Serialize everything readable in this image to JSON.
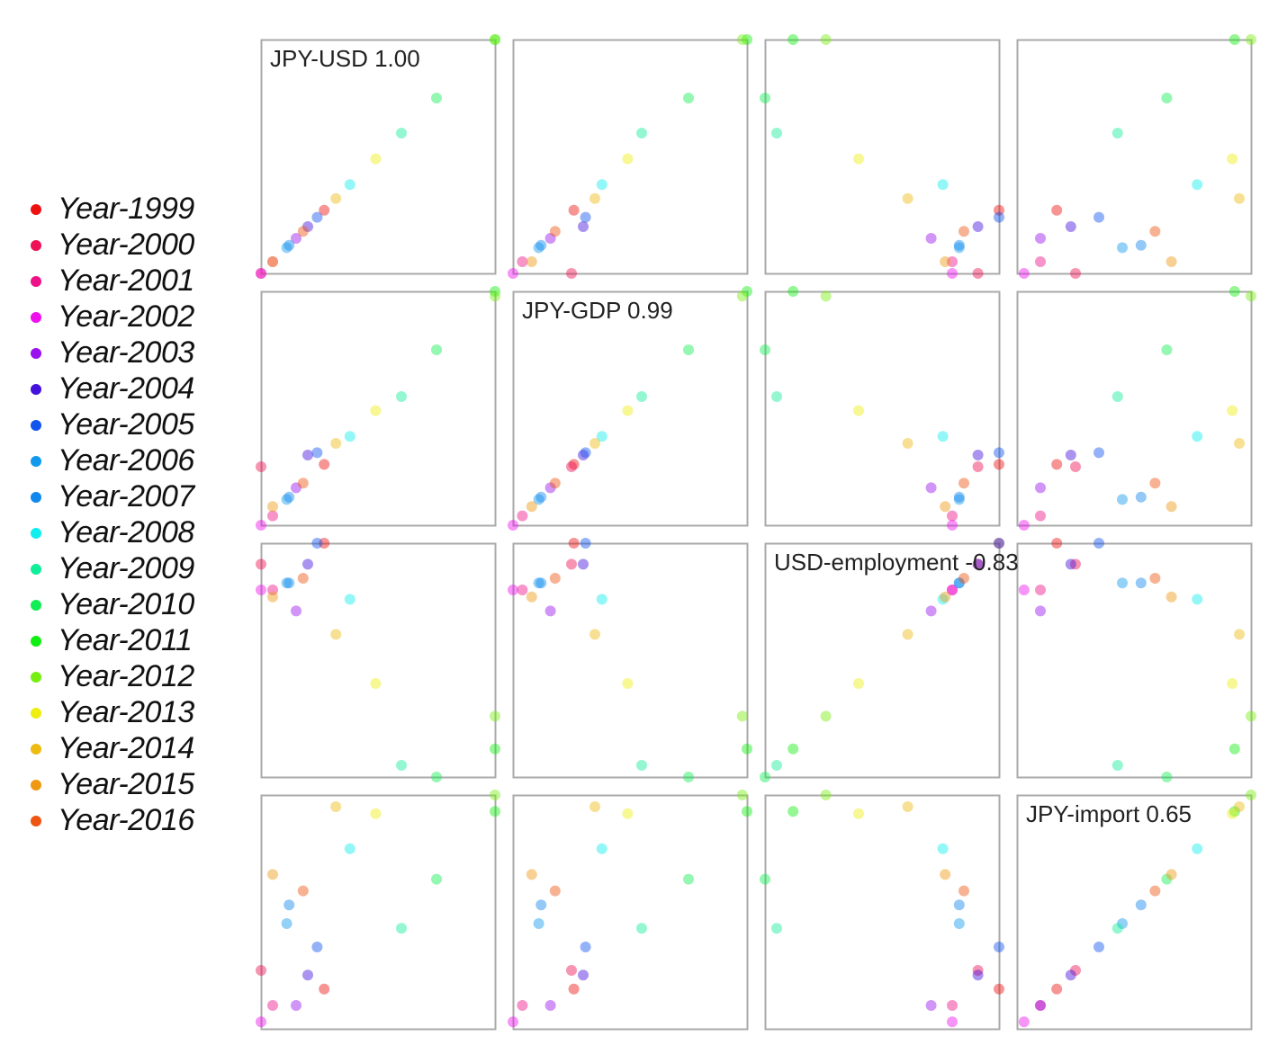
{
  "legend": {
    "items": [
      {
        "label": "Year-1999",
        "color": "#ee1111"
      },
      {
        "label": "Year-2000",
        "color": "#ee1155"
      },
      {
        "label": "Year-2001",
        "color": "#ee1188"
      },
      {
        "label": "Year-2002",
        "color": "#ee11ee"
      },
      {
        "label": "Year-2003",
        "color": "#9911ee"
      },
      {
        "label": "Year-2004",
        "color": "#4411dd"
      },
      {
        "label": "Year-2005",
        "color": "#1155ee"
      },
      {
        "label": "Year-2006",
        "color": "#1199ee"
      },
      {
        "label": "Year-2007",
        "color": "#1188ee"
      },
      {
        "label": "Year-2008",
        "color": "#11eeee"
      },
      {
        "label": "Year-2009",
        "color": "#11ee99"
      },
      {
        "label": "Year-2010",
        "color": "#11ee55"
      },
      {
        "label": "Year-2011",
        "color": "#11ee11"
      },
      {
        "label": "Year-2012",
        "color": "#77ee11"
      },
      {
        "label": "Year-2013",
        "color": "#eeee11"
      },
      {
        "label": "Year-2014",
        "color": "#eebb11"
      },
      {
        "label": "Year-2015",
        "color": "#ee9911"
      },
      {
        "label": "Year-2016",
        "color": "#ee5511"
      }
    ]
  },
  "chart_data": {
    "type": "scatter",
    "variables": [
      "JPY",
      "GDP",
      "employment",
      "import"
    ],
    "row_variables": [
      "JPY",
      "GDP",
      "employment",
      "import"
    ],
    "col_variables": [
      "USD",
      "GDP",
      "employment",
      "import"
    ],
    "point_colors": [
      "#ee1111",
      "#ee1155",
      "#ee1188",
      "#ee11ee",
      "#9911ee",
      "#4411dd",
      "#1155ee",
      "#1199ee",
      "#1188ee",
      "#11eeee",
      "#11ee99",
      "#11ee55",
      "#11ee11",
      "#77ee11",
      "#eeee11",
      "#eebb11",
      "#ee9911",
      "#ee5511"
    ],
    "normalized_values": {
      "JPY": [
        0.27,
        0.0,
        0.05,
        0.0,
        0.15,
        0.2,
        0.24,
        0.11,
        0.12,
        0.38,
        0.6,
        0.75,
        1.0,
        1.0,
        0.49,
        0.32,
        0.05,
        0.18
      ],
      "GDP": [
        0.26,
        0.25,
        0.04,
        0.0,
        0.16,
        0.3,
        0.31,
        0.11,
        0.12,
        0.38,
        0.55,
        0.75,
        1.0,
        0.98,
        0.49,
        0.35,
        0.08,
        0.18
      ],
      "employment": [
        1.0,
        0.91,
        0.8,
        0.8,
        0.71,
        0.91,
        1.0,
        0.83,
        0.83,
        0.76,
        0.05,
        0.0,
        0.12,
        0.26,
        0.4,
        0.61,
        0.77,
        0.85
      ],
      "import": [
        0.17,
        0.25,
        0.1,
        0.03,
        0.1,
        0.23,
        0.35,
        0.45,
        0.53,
        0.77,
        0.43,
        0.64,
        0.93,
        1.0,
        0.92,
        0.95,
        0.66,
        0.59
      ]
    },
    "panel_labels": [
      {
        "row": 0,
        "col": 0,
        "text": "JPY-USD 1.00"
      },
      {
        "row": 1,
        "col": 1,
        "text": "JPY-GDP 0.99"
      },
      {
        "row": 2,
        "col": 2,
        "text": "USD-employment -0.83"
      },
      {
        "row": 3,
        "col": 3,
        "text": "JPY-import 0.65"
      }
    ],
    "legend_position": "left",
    "grid": false
  }
}
